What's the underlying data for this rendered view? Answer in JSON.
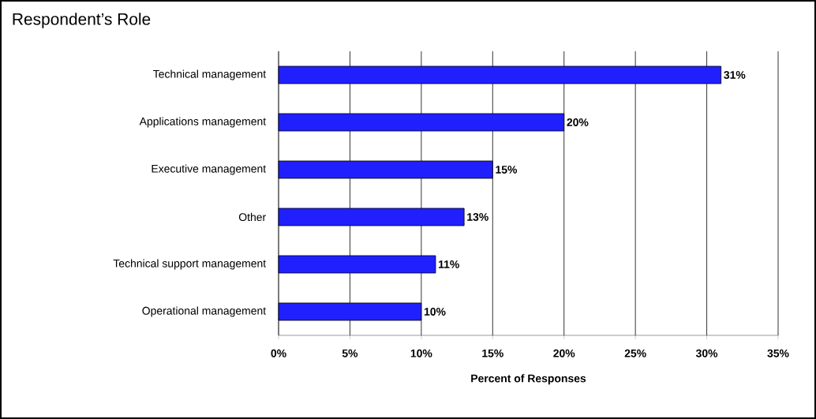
{
  "chart_data": {
    "type": "bar",
    "orientation": "horizontal",
    "title": "Respondent’s Role",
    "xlabel": "Percent of Responses",
    "categories": [
      "Technical management",
      "Applications management",
      "Executive management",
      "Other",
      "Technical support management",
      "Operational management"
    ],
    "values": [
      31,
      20,
      15,
      13,
      11,
      10
    ],
    "value_labels": [
      "31%",
      "20%",
      "15%",
      "13%",
      "11%",
      "10%"
    ],
    "color": "#2020ff",
    "xlim": [
      0,
      35
    ],
    "xticks": [
      {
        "value": 0,
        "label": "0%"
      },
      {
        "value": 5,
        "label": "5%"
      },
      {
        "value": 10,
        "label": "10%"
      },
      {
        "value": 15,
        "label": "15%"
      },
      {
        "value": 20,
        "label": "20%"
      },
      {
        "value": 25,
        "label": "25%"
      },
      {
        "value": 30,
        "label": "30%"
      },
      {
        "value": 35,
        "label": "35%"
      }
    ],
    "grid": "x"
  }
}
